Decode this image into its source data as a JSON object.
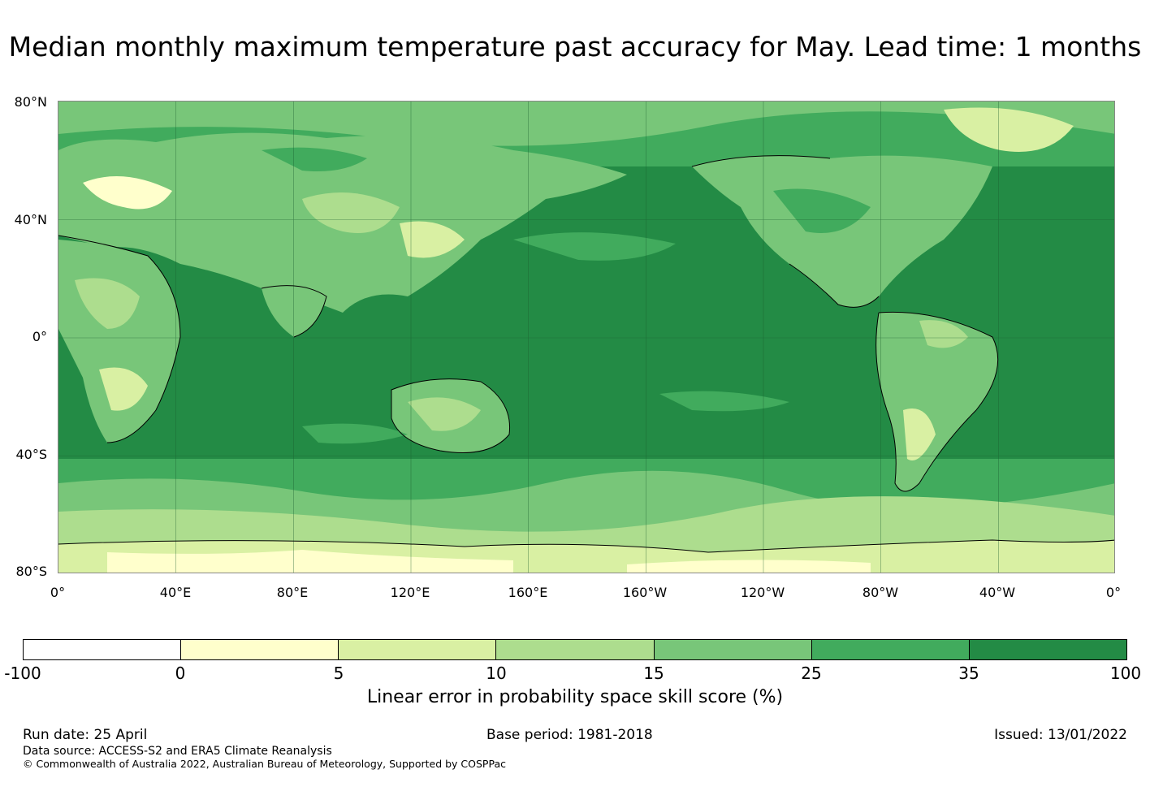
{
  "title": "Median monthly maximum temperature past accuracy for May. Lead time: 1 months",
  "map": {
    "latitude_labels": [
      "80°N",
      "40°N",
      "0°",
      "40°S",
      "80°S"
    ],
    "longitude_labels": [
      "0°",
      "40°E",
      "80°E",
      "120°E",
      "160°E",
      "160°W",
      "120°W",
      "80°W",
      "40°W",
      "0°"
    ],
    "projection": "plate carrée, centred on 180°",
    "grid": true,
    "fill": "skill score shading over land and ocean with black coastlines"
  },
  "colorbar": {
    "ticks": [
      "-100",
      "0",
      "5",
      "10",
      "15",
      "25",
      "35",
      "100"
    ],
    "colors": [
      "#ffffff",
      "#ffffcc",
      "#d9f0a3",
      "#addd8e",
      "#78c679",
      "#41ab5d",
      "#238b45"
    ],
    "label": "Linear error in probability space skill score (%)"
  },
  "footer": {
    "run_date": "Run date: 25 April",
    "base_period": "Base period: 1981-2018",
    "issued": "Issued: 13/01/2022",
    "data_source": "Data source: ACCESS-S2 and ERA5 Climate Reanalysis",
    "copyright": "© Commonwealth of Australia 2022, Australian Bureau of Meteorology, Supported by COSPPac"
  }
}
